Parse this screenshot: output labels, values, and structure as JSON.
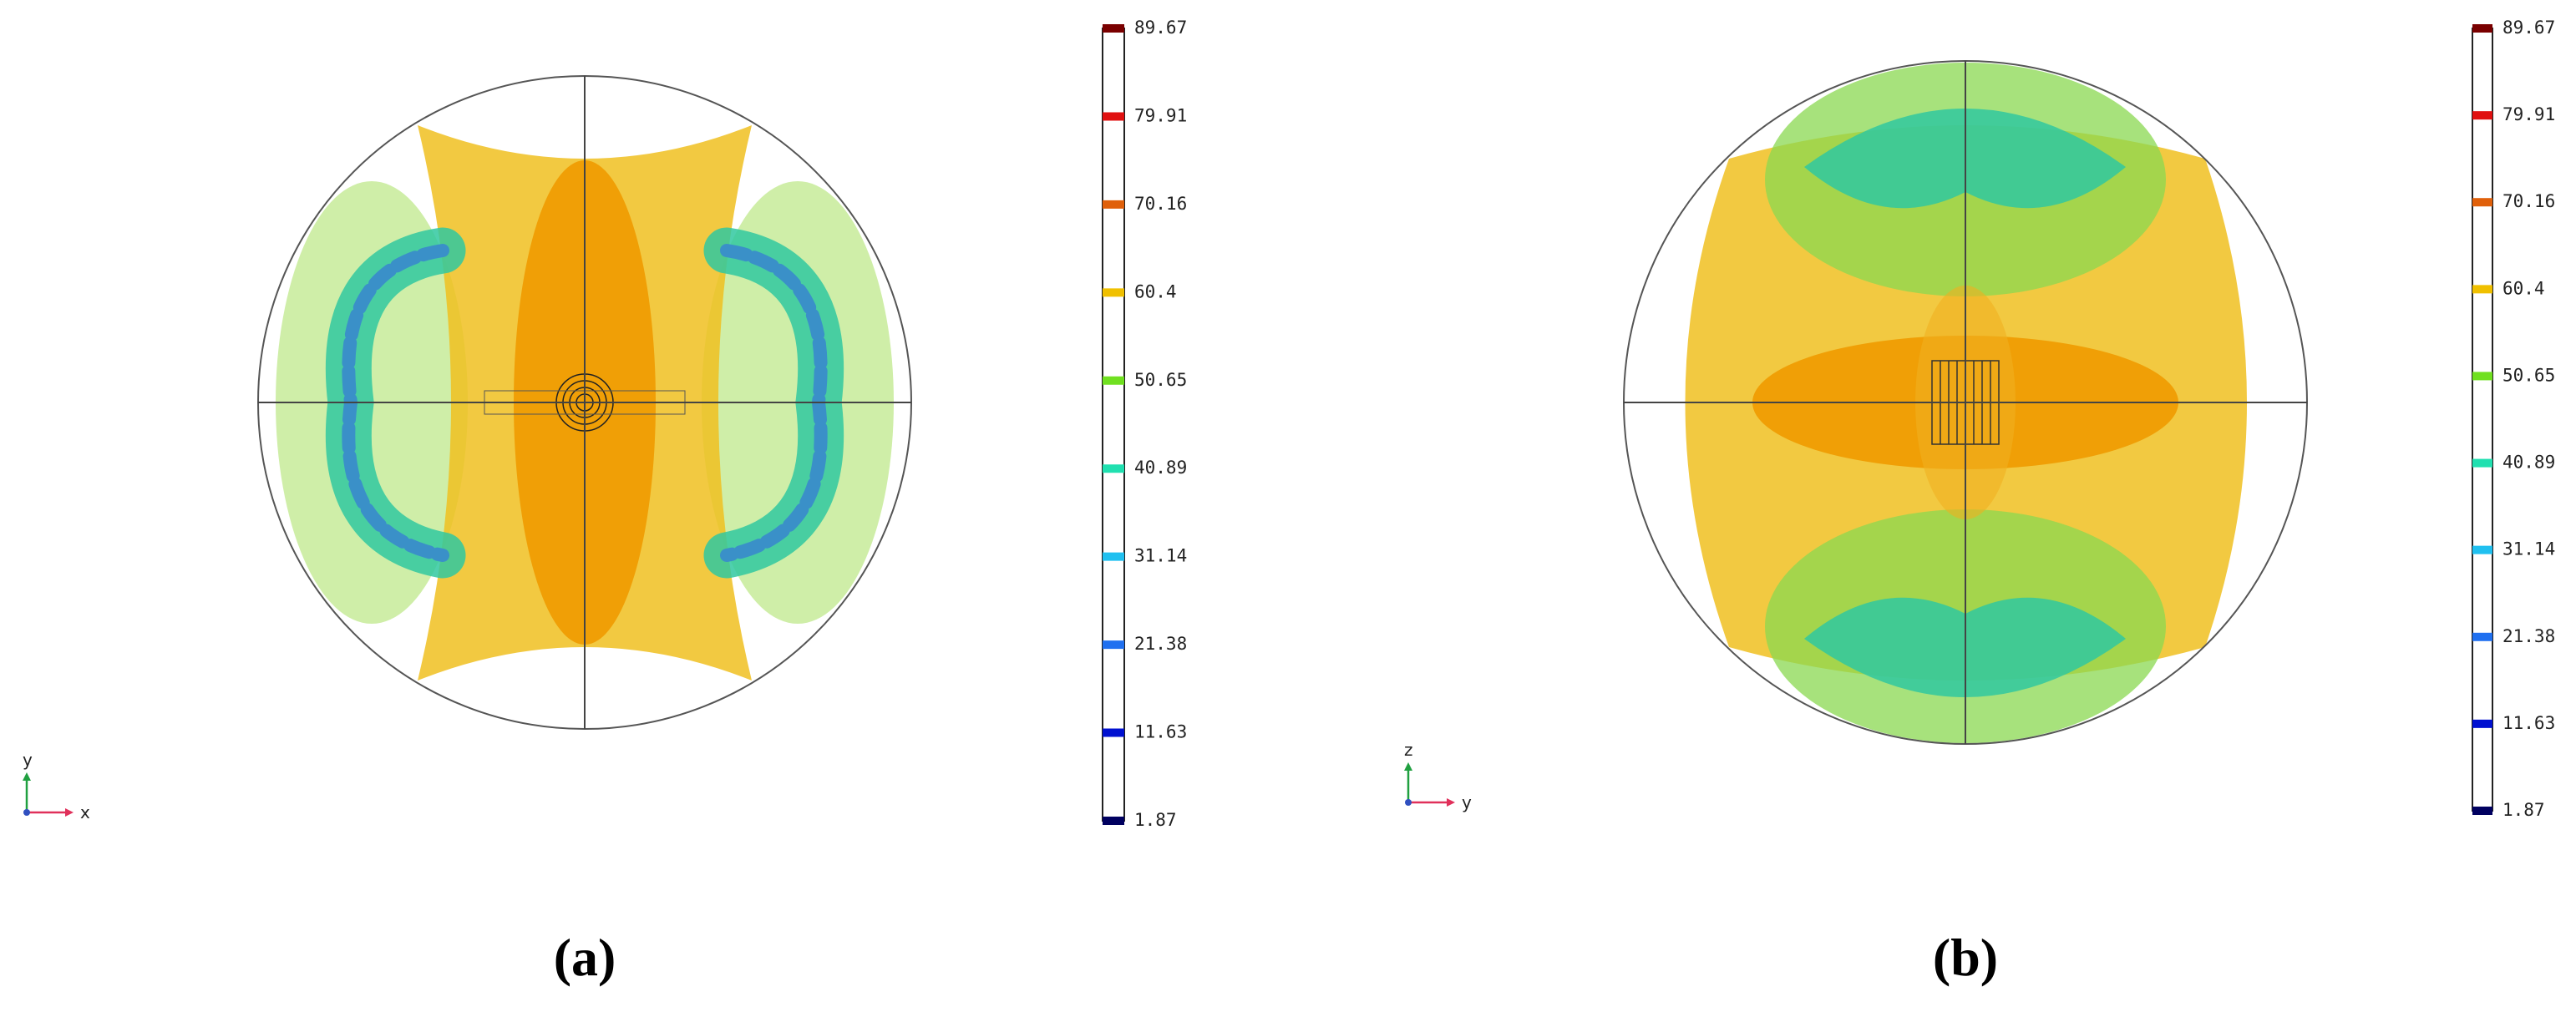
{
  "panels": [
    {
      "label": "(a)",
      "axes": {
        "horizontal": "x",
        "vertical": "y"
      },
      "colorbar": {
        "ticks": [
          1.87,
          11.63,
          21.38,
          31.14,
          40.89,
          50.65,
          60.4,
          70.16,
          79.91,
          89.67
        ],
        "colors": [
          "#000060",
          "#0010d0",
          "#2070f0",
          "#20c0f0",
          "#20e0b0",
          "#70e020",
          "#f0c000",
          "#e0600a",
          "#e01010",
          "#7a0000"
        ]
      }
    },
    {
      "label": "(b)",
      "axes": {
        "horizontal": "y",
        "vertical": "z"
      },
      "colorbar": {
        "ticks": [
          1.87,
          11.63,
          21.38,
          31.14,
          40.89,
          50.65,
          60.4,
          70.16,
          79.91,
          89.67
        ],
        "colors": [
          "#000060",
          "#0010d0",
          "#2070f0",
          "#20c0f0",
          "#20e0b0",
          "#70e020",
          "#f0c000",
          "#e0600a",
          "#e01010",
          "#7a0000"
        ]
      }
    }
  ]
}
